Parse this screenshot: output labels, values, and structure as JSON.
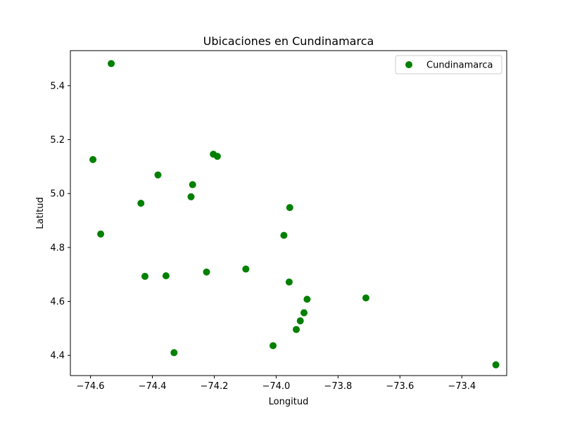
{
  "chart_data": {
    "type": "scatter",
    "title": "Ubicaciones en Cundinamarca",
    "xlabel": "Longitud",
    "ylabel": "Latitud",
    "xlim": [
      -74.665,
      -73.255
    ],
    "ylim": [
      4.325,
      5.53
    ],
    "xticks": [
      -74.6,
      -74.4,
      -74.2,
      -74.0,
      -73.8,
      -73.6,
      -73.4
    ],
    "xtick_labels": [
      "−74.6",
      "−74.4",
      "−74.2",
      "−74.0",
      "−73.8",
      "−73.6",
      "−73.4"
    ],
    "yticks": [
      4.4,
      4.6,
      4.8,
      5.0,
      5.2,
      5.4
    ],
    "ytick_labels": [
      "4.4",
      "4.6",
      "4.8",
      "5.0",
      "5.2",
      "5.4"
    ],
    "grid": false,
    "legend_position": "top-right",
    "series": [
      {
        "name": "Cundinamarca",
        "color": "#008000",
        "points": [
          {
            "x": -74.533,
            "y": 5.482
          },
          {
            "x": -74.592,
            "y": 5.126
          },
          {
            "x": -74.567,
            "y": 4.85
          },
          {
            "x": -74.382,
            "y": 5.069
          },
          {
            "x": -74.437,
            "y": 4.964
          },
          {
            "x": -74.27,
            "y": 5.033
          },
          {
            "x": -74.275,
            "y": 4.988
          },
          {
            "x": -74.203,
            "y": 5.146
          },
          {
            "x": -74.19,
            "y": 5.138
          },
          {
            "x": -74.424,
            "y": 4.693
          },
          {
            "x": -74.356,
            "y": 4.695
          },
          {
            "x": -74.225,
            "y": 4.709
          },
          {
            "x": -74.098,
            "y": 4.72
          },
          {
            "x": -74.33,
            "y": 4.41
          },
          {
            "x": -73.956,
            "y": 4.948
          },
          {
            "x": -73.975,
            "y": 4.845
          },
          {
            "x": -73.958,
            "y": 4.672
          },
          {
            "x": -73.9,
            "y": 4.608
          },
          {
            "x": -73.91,
            "y": 4.558
          },
          {
            "x": -73.922,
            "y": 4.528
          },
          {
            "x": -73.935,
            "y": 4.496
          },
          {
            "x": -74.01,
            "y": 4.436
          },
          {
            "x": -73.71,
            "y": 4.613
          },
          {
            "x": -73.29,
            "y": 4.365
          }
        ]
      }
    ]
  }
}
